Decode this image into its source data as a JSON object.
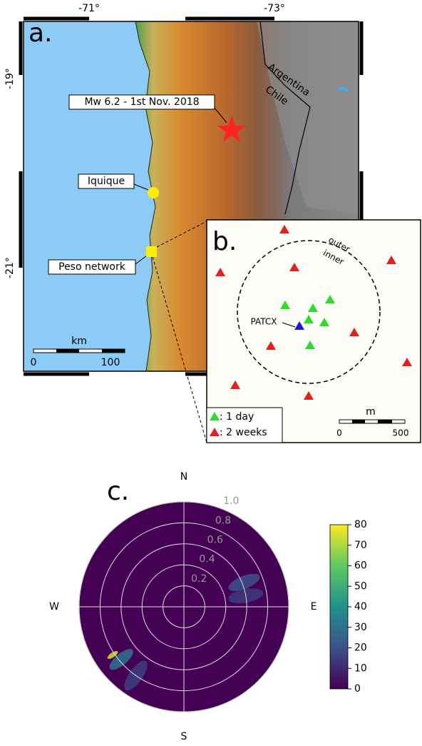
{
  "panel_a": {
    "label": "a.",
    "lon_ticks": [
      "-71°",
      "-73°"
    ],
    "lat_ticks": [
      "-19°",
      "-21°"
    ],
    "annotations": {
      "event": "Mw 6.2 - 1st Nov. 2018",
      "city": "Iquique",
      "network": "Peso network",
      "country_east": "Argentina",
      "country_west": "Chile"
    },
    "scale_bar": {
      "unit": "km",
      "ticks": [
        "0",
        "100"
      ]
    }
  },
  "panel_b": {
    "label": "b.",
    "outer": "outer",
    "inner": "inner",
    "station": "PATCX",
    "legend": [
      ": 1 day",
      ": 2 weeks"
    ],
    "scale_bar": {
      "unit": "m",
      "ticks": [
        "0",
        "500"
      ]
    }
  },
  "chart_data": {
    "type": "polar-histogram",
    "label": "c.",
    "directions": [
      "N",
      "E",
      "S",
      "W"
    ],
    "rlim": [
      0,
      1
    ],
    "rticks": [
      0.2,
      0.4,
      0.6,
      0.8,
      {
        "value": 1,
        "label": "1.0"
      }
    ],
    "hotspots": [
      {
        "azimuth": 236,
        "r": 0.82,
        "count": 75
      },
      {
        "azimuth": 230,
        "r": 0.78,
        "count": 30
      },
      {
        "azimuth": 215,
        "r": 0.8,
        "count": 15
      },
      {
        "azimuth": 68,
        "r": 0.62,
        "count": 20
      },
      {
        "azimuth": 80,
        "r": 0.6,
        "count": 14
      }
    ],
    "colorbar": {
      "lim": [
        0,
        80
      ],
      "ticks": [
        0,
        10,
        20,
        30,
        40,
        50,
        60,
        70,
        80
      ]
    }
  }
}
